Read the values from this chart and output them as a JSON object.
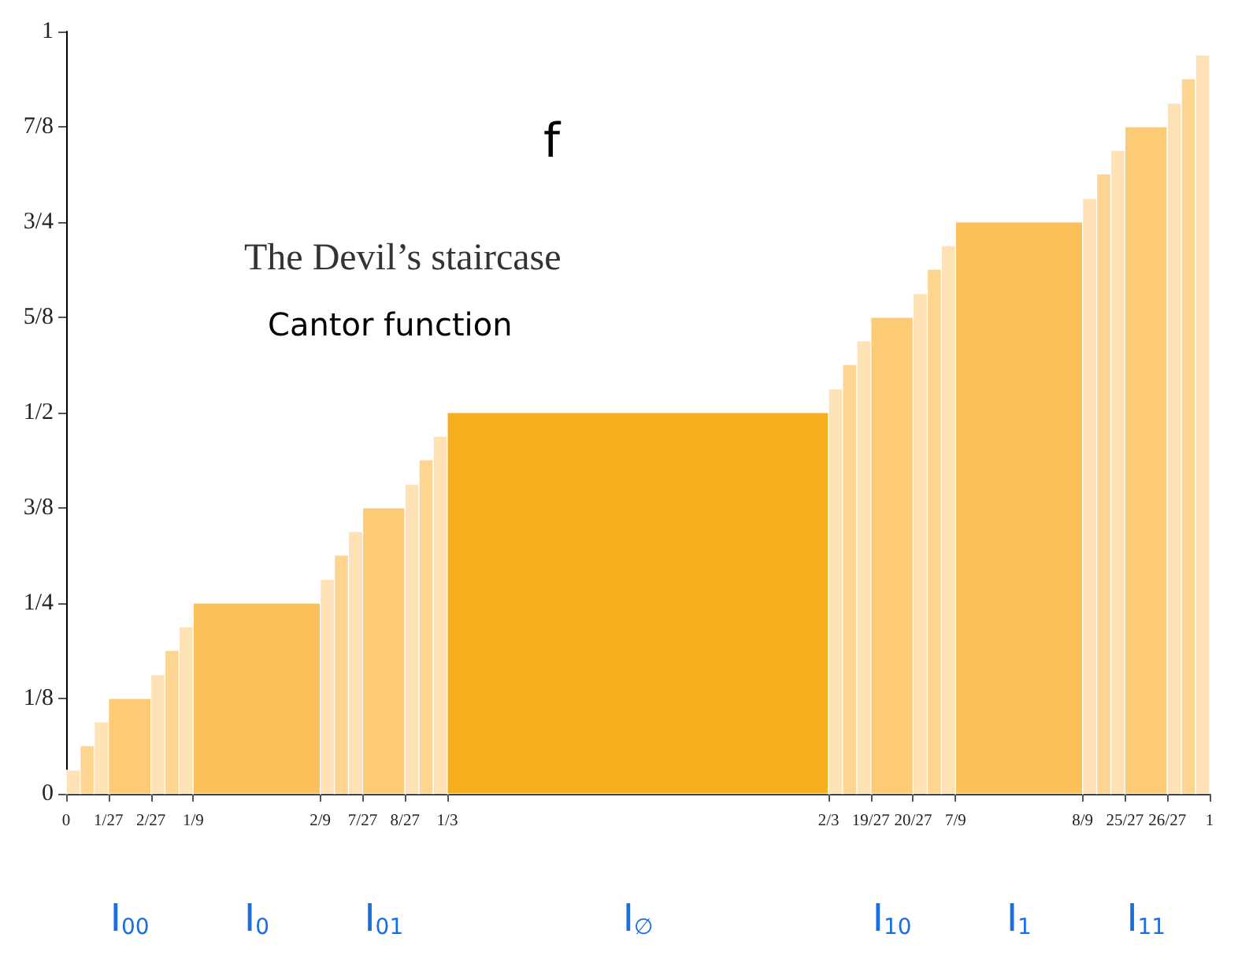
{
  "chart_data": {
    "type": "histogram",
    "bins": [
      0,
      0.0123,
      0.0247,
      0.037,
      0.0741,
      0.0864,
      0.0988,
      0.1111,
      0.2222,
      0.2346,
      0.2469,
      0.2593,
      0.2963,
      0.3086,
      0.321,
      0.3333,
      0.6667,
      0.679,
      0.6914,
      0.7037,
      0.7407,
      0.7531,
      0.7654,
      0.7778,
      0.8889,
      0.9012,
      0.9136,
      0.9259,
      0.963,
      0.9753,
      0.9877,
      1
    ],
    "values": [
      0.031,
      0.063,
      0.094,
      0.125,
      0.156,
      0.188,
      0.219,
      0.25,
      0.281,
      0.313,
      0.344,
      0.375,
      0.406,
      0.438,
      0.469,
      0.5,
      0.531,
      0.563,
      0.594,
      0.625,
      0.656,
      0.688,
      0.719,
      0.75,
      0.781,
      0.813,
      0.844,
      0.875,
      0.906,
      0.938,
      0.969
    ],
    "colors": [
      "#fee2b5",
      "#fdd590",
      "#fee2b5",
      "#fdcb75",
      "#fee2b5",
      "#fdd590",
      "#fee2b5",
      "#fcc05a",
      "#fee2b5",
      "#fdd590",
      "#fee2b5",
      "#fdcb75",
      "#fee2b5",
      "#fdd590",
      "#fee2b5",
      "#f8af1d",
      "#fee2b5",
      "#fdd590",
      "#fee2b5",
      "#fdcb75",
      "#fee2b5",
      "#fdd590",
      "#fee2b5",
      "#fcc05a",
      "#fee2b5",
      "#fdd590",
      "#fee2b5",
      "#fdcb75",
      "#fee2b5",
      "#fdd590",
      "#fee2b5"
    ],
    "xlim": [
      0,
      1
    ],
    "xticks": [
      0,
      {
        "value": 0.037,
        "label": "1/27"
      },
      {
        "value": 0.0741,
        "label": "2/27"
      },
      {
        "value": 0.1111,
        "label": "1/9"
      },
      {
        "value": 0.2222,
        "label": "2/9"
      },
      {
        "value": 0.2593,
        "label": "7/27"
      },
      {
        "value": 0.2963,
        "label": "8/27"
      },
      {
        "value": 0.3333,
        "label": "1/3"
      },
      {
        "value": 0.6667,
        "label": "2/3"
      },
      {
        "value": 0.7037,
        "label": "19/27"
      },
      {
        "value": 0.7407,
        "label": "20/27"
      },
      {
        "value": 0.7778,
        "label": "7/9"
      },
      {
        "value": 0.8889,
        "label": "8/9"
      },
      {
        "value": 0.9259,
        "label": "25/27"
      },
      {
        "value": 0.963,
        "label": "26/27"
      },
      1
    ],
    "ylim": [
      0,
      1
    ],
    "yticks": [
      0,
      {
        "value": 0.125,
        "label": "1/8"
      },
      {
        "value": 0.25,
        "label": "1/4"
      },
      {
        "value": 0.375,
        "label": "3/8"
      },
      {
        "value": 0.5,
        "label": "1/2"
      },
      {
        "value": 0.625,
        "label": "5/8"
      },
      {
        "value": 0.75,
        "label": "3/4"
      },
      {
        "value": 0.875,
        "label": "7/8"
      },
      1
    ],
    "annotations": [
      "The Devil’s staircase",
      "f",
      "Cantor function",
      "I$_{00}$",
      "I$_{0}$",
      "I$_{01}$",
      "I$_{∅}$",
      "I$_{10}$",
      "I$_{1}$",
      "I$_{11}$"
    ]
  }
}
